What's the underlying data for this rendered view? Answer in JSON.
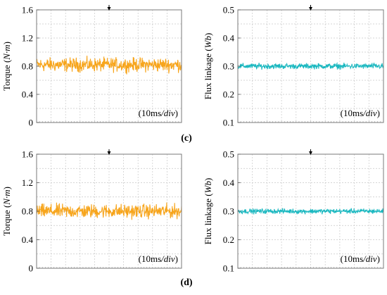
{
  "figure": {
    "panel_labels": [
      "(c)",
      "(d)"
    ]
  },
  "chart_data": [
    {
      "type": "line",
      "panel": "(c)",
      "ylabel": "Torque (N·m)",
      "ylabel_parts": [
        "Torque (",
        "N·m",
        ")"
      ],
      "ylim": [
        0,
        1.6
      ],
      "yticks": [
        "0",
        "0.4",
        "0.8",
        "1.2",
        "1.6"
      ],
      "xlabel": "",
      "annotation": "(10ms/div)",
      "annotation_parts": [
        "(10ms",
        "/div",
        ")"
      ],
      "grid": true,
      "trigger_marker": true,
      "series": [
        {
          "color": "#f7a51c",
          "mean": 0.82,
          "noise_amplitude": 0.09,
          "x_range": [
            0,
            100
          ]
        }
      ]
    },
    {
      "type": "line",
      "panel": "(c)",
      "ylabel": "Flux linkage (Wb)",
      "ylabel_parts": [
        "Flux linkage (",
        "Wb",
        ")"
      ],
      "ylim": [
        0.1,
        0.5
      ],
      "yticks": [
        "0.1",
        "0.2",
        "0.3",
        "0.4",
        "0.5"
      ],
      "xlabel": "",
      "annotation": "(10ms/div)",
      "annotation_parts": [
        "(10ms",
        "/div",
        ")"
      ],
      "grid": true,
      "trigger_marker": true,
      "series": [
        {
          "color": "#1ab8c0",
          "mean": 0.3,
          "noise_amplitude": 0.009,
          "x_range": [
            0,
            100
          ]
        }
      ]
    },
    {
      "type": "line",
      "panel": "(d)",
      "ylabel": "Torque (N·m)",
      "ylabel_parts": [
        "Torque (",
        "N·m",
        ")"
      ],
      "ylim": [
        0,
        1.6
      ],
      "yticks": [
        "0",
        "0.4",
        "0.8",
        "1.2",
        "1.6"
      ],
      "xlabel": "",
      "annotation": "(10ms/div)",
      "annotation_parts": [
        "(10ms",
        "/div",
        ")"
      ],
      "grid": true,
      "trigger_marker": true,
      "series": [
        {
          "color": "#f7a51c",
          "mean": 0.8,
          "noise_amplitude": 0.09,
          "x_range": [
            0,
            100
          ]
        }
      ]
    },
    {
      "type": "line",
      "panel": "(d)",
      "ylabel": "Flux linkage (Wb)",
      "ylabel_parts": [
        "Flux linkage (",
        "Wb",
        ")"
      ],
      "ylim": [
        0.1,
        0.5
      ],
      "yticks": [
        "0.1",
        "0.2",
        "0.3",
        "0.4",
        "0.5"
      ],
      "xlabel": "",
      "annotation": "(10ms/div)",
      "annotation_parts": [
        "(10ms",
        "/div",
        ")"
      ],
      "grid": true,
      "trigger_marker": true,
      "series": [
        {
          "color": "#1ab8c0",
          "mean": 0.3,
          "noise_amplitude": 0.008,
          "x_range": [
            0,
            100
          ]
        }
      ]
    }
  ]
}
